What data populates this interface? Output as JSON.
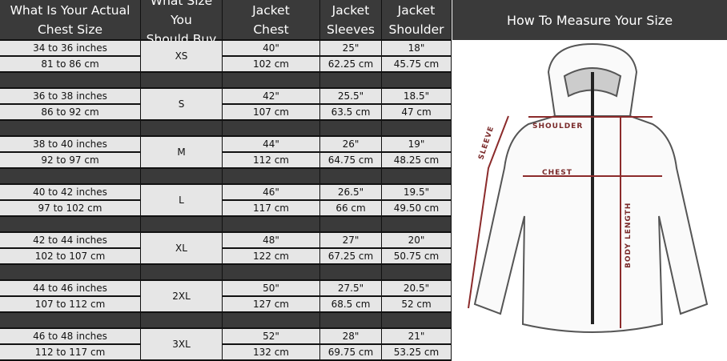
{
  "headers": [
    "What Is Your Actual\nChest Size",
    "What Size You\nShould Buy",
    "Jacket\nChest",
    "Jacket\nSleeves",
    "Jacket\nShoulder"
  ],
  "rows": [
    {
      "chest_in": "34 to 36 inches",
      "chest_cm": "81 to 86 cm",
      "size": "XS",
      "jacket_chest_in": "40\"",
      "jacket_chest_cm": "102 cm",
      "sleeves_in": "25\"",
      "sleeves_cm": "62.25 cm",
      "shoulder_in": "18\"",
      "shoulder_cm": "45.75 cm"
    },
    {
      "chest_in": "36 to 38 inches",
      "chest_cm": "86 to 92 cm",
      "size": "S",
      "jacket_chest_in": "42\"",
      "jacket_chest_cm": "107 cm",
      "sleeves_in": "25.5\"",
      "sleeves_cm": "63.5 cm",
      "shoulder_in": "18.5\"",
      "shoulder_cm": "47 cm"
    },
    {
      "chest_in": "38 to 40 inches",
      "chest_cm": "92 to 97 cm",
      "size": "M",
      "jacket_chest_in": "44\"",
      "jacket_chest_cm": "112 cm",
      "sleeves_in": "26\"",
      "sleeves_cm": "64.75 cm",
      "shoulder_in": "19\"",
      "shoulder_cm": "48.25 cm"
    },
    {
      "chest_in": "40 to 42 inches",
      "chest_cm": "97 to 102 cm",
      "size": "L",
      "jacket_chest_in": "46\"",
      "jacket_chest_cm": "117 cm",
      "sleeves_in": "26.5\"",
      "sleeves_cm": "66 cm",
      "shoulder_in": "19.5\"",
      "shoulder_cm": "49.50 cm"
    },
    {
      "chest_in": "42 to 44 inches",
      "chest_cm": "102 to 107 cm",
      "size": "XL",
      "jacket_chest_in": "48\"",
      "jacket_chest_cm": "122 cm",
      "sleeves_in": "27\"",
      "sleeves_cm": "67.25 cm",
      "shoulder_in": "20\"",
      "shoulder_cm": "50.75 cm"
    },
    {
      "chest_in": "44 to 46 inches",
      "chest_cm": "107 to 112 cm",
      "size": "2XL",
      "jacket_chest_in": "50\"",
      "jacket_chest_cm": "127 cm",
      "sleeves_in": "27.5\"",
      "sleeves_cm": "68.5 cm",
      "shoulder_in": "20.5\"",
      "shoulder_cm": "52 cm"
    },
    {
      "chest_in": "46 to 48 inches",
      "chest_cm": "112 to 117 cm",
      "size": "3XL",
      "jacket_chest_in": "52\"",
      "jacket_chest_cm": "132 cm",
      "sleeves_in": "28\"",
      "sleeves_cm": "69.75 cm",
      "shoulder_in": "21\"",
      "shoulder_cm": "53.25 cm"
    }
  ],
  "panel": {
    "title": "How To Measure Your Size",
    "labels": {
      "shoulder": "SHOULDER",
      "chest": "CHEST",
      "sleeve": "SLEEVE",
      "body_length": "BODY LENGTH"
    }
  },
  "colors": {
    "header_bg": "#3a3a3a",
    "cell_bg": "#e6e6e6",
    "measure_line": "#8b2b2b"
  }
}
